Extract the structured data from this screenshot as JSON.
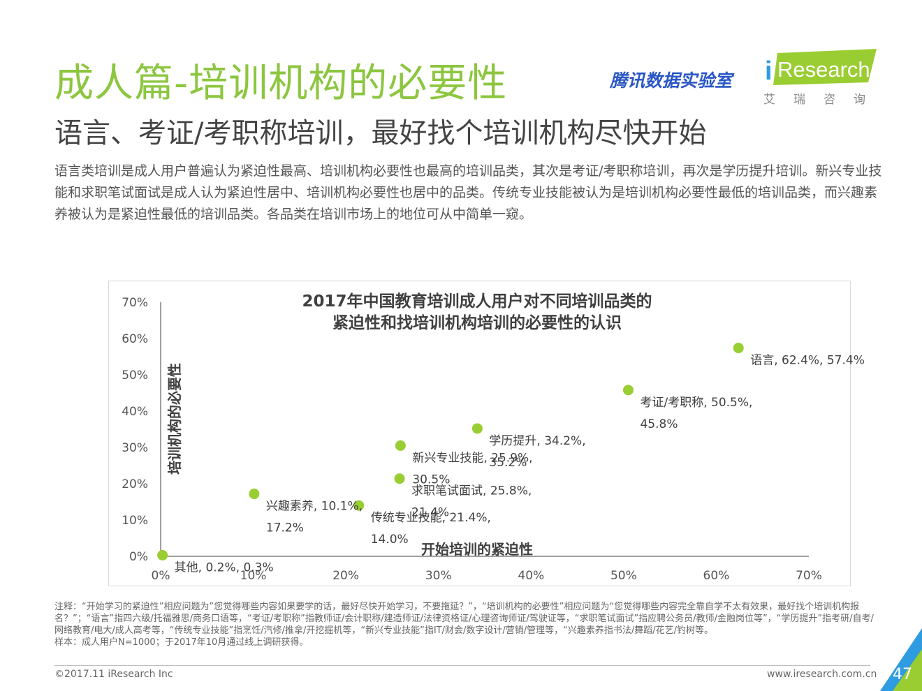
{
  "header": {
    "title": "成人篇-培训机构的必要性",
    "subtitle": "语言、考证/考职称培训，最好找个培训机构尽快开始",
    "description": "语言类培训是成人用户普遍认为紧迫性最高、培训机构必要性也最高的培训品类，其次是考证/考职称培训，再次是学历提升培训。新兴专业技能和求职笔试面试是成人认为紧迫性居中、培训机构必要性也居中的品类。传统专业技能被认为是培训机构必要性最低的培训品类，而兴趣素养被认为是紧迫性最低的培训品类。各品类在培训市场上的地位可从中简单一窥。"
  },
  "branding": {
    "tencent_lab": "腾讯数据实验室",
    "iresearch_logo": "iResearch",
    "iresearch_cn": "艾瑞咨询"
  },
  "chart_data": {
    "type": "scatter",
    "title_line1": "2017年中国教育培训成人用户对不同培训品类的",
    "title_line2": "紧迫性和找培训机构培训的必要性的认识",
    "xlabel": "开始培训的紧迫性",
    "ylabel": "培训机构的必要性",
    "xlim": [
      0,
      70
    ],
    "ylim": [
      0,
      70
    ],
    "x_ticks": [
      "0%",
      "10%",
      "20%",
      "30%",
      "40%",
      "50%",
      "60%",
      "70%"
    ],
    "y_ticks": [
      "0%",
      "10%",
      "20%",
      "30%",
      "40%",
      "50%",
      "60%",
      "70%"
    ],
    "point_color": "#9acd32",
    "points": [
      {
        "name": "语言",
        "x": 62.4,
        "y": 57.4,
        "label1": "语言, 62.4%, 57.4%",
        "label2": ""
      },
      {
        "name": "考证/考职称",
        "x": 50.5,
        "y": 45.8,
        "label1": "考证/考职称, 50.5%,",
        "label2": "45.8%"
      },
      {
        "name": "学历提升",
        "x": 34.2,
        "y": 35.2,
        "label1": "学历提升, 34.2%,",
        "label2": "35.2%"
      },
      {
        "name": "新兴专业技能",
        "x": 25.9,
        "y": 30.5,
        "label1": "新兴专业技能, 25.9%,",
        "label2": "30.5%"
      },
      {
        "name": "求职笔试面试",
        "x": 25.8,
        "y": 21.4,
        "label1": "求职笔试面试, 25.8%,",
        "label2": "21.4%"
      },
      {
        "name": "传统专业技能",
        "x": 21.4,
        "y": 14.0,
        "label1": "传统专业技能, 21.4%,",
        "label2": "14.0%"
      },
      {
        "name": "兴趣素养",
        "x": 10.1,
        "y": 17.2,
        "label1": "兴趣素养, 10.1%,",
        "label2": "17.2%"
      },
      {
        "name": "其他",
        "x": 0.2,
        "y": 0.3,
        "label1": "其他, 0.2%, 0.3%",
        "label2": ""
      }
    ]
  },
  "notes": {
    "line1": "注释：“开始学习的紧迫性”相应问题为”您觉得哪些内容如果要学的话，最好尽快开始学习，不要拖延？”，“培训机构的必要性”相应问题为“您觉得哪些内容完全靠自学不太有效果，最好找个培训机构报名？”；“语言”指四六级/托福雅思/商务口语等，“考证/考职称”指教师证/会计职称/建造师证/法律资格证/心理咨询师证/驾驶证等，“求职笔试面试”指应聘公务员/教师/金融岗位等”，“学历提升”指考研/自考/网络教育/电大/成人高考等，“传统专业技能”指烹饪/汽修/推拿/开挖掘机等，“新兴专业技能”指IT/财会/数字设计/营销/管理等，“兴趣素养指书法/舞蹈/花艺/钓树等。",
    "line2": "样本：成人用户N=1000；于2017年10月通过线上调研获得。"
  },
  "footer": {
    "copyright": "©2017.11 iResearch Inc",
    "website": "www.iresearch.com.cn",
    "page_number": "47"
  }
}
